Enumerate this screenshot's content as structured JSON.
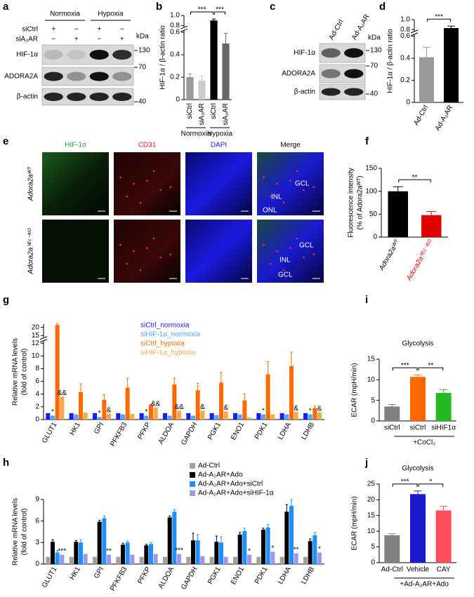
{
  "chart_data": [
    {
      "type": "bar",
      "label": "b",
      "ylabel": "HIF-1α / β-actin ratio",
      "categories": [
        "siCtrl",
        "siA₂AR",
        "siCtrl",
        "siA₂AR"
      ],
      "values": [
        0.2,
        0.17,
        0.9,
        0.5
      ],
      "errors": [
        0.03,
        0.04,
        0.03,
        0.09
      ],
      "colors": [
        "#999999",
        "#cccccc",
        "#000000",
        "#666666"
      ],
      "ylim": [
        0,
        1.0
      ],
      "yticks": [
        0,
        0.2,
        0.4,
        0.6,
        0.8,
        {
          "value": 1.0,
          "label": "1.0"
        }
      ],
      "groups": [
        {
          "label": "Normoxia",
          "categories": [
            0,
            1
          ]
        },
        {
          "label": "Hypoxia",
          "categories": [
            2,
            3
          ]
        }
      ],
      "significance": [
        {
          "from": 0,
          "to": 2,
          "text": "***"
        },
        {
          "from": 2,
          "to": 3,
          "text": "***"
        }
      ]
    },
    {
      "type": "bar",
      "label": "d",
      "ylabel": "HIF-1α / β-actin ratio",
      "categories": [
        "Ad-Ctrl",
        "Ad-A₂AR"
      ],
      "values": [
        0.41,
        0.83
      ],
      "errors": [
        0.09,
        0.04
      ],
      "colors": [
        "#999999",
        "#000000"
      ],
      "ylim": [
        0,
        1.0
      ],
      "yticks": [
        0,
        0.2,
        0.4,
        0.6,
        0.8,
        {
          "value": 1.0,
          "label": "1.0"
        }
      ],
      "significance": [
        {
          "from": 0,
          "to": 1,
          "text": "***"
        }
      ]
    },
    {
      "type": "bar",
      "label": "f",
      "ylabel": [
        "Fluorescence intensity",
        "(% of Adora2aᵂᵀ)"
      ],
      "categories": [
        "Adora2aᵂᵀ",
        "Adora2aⱽᴱᶜ⁻ᴷᴼ"
      ],
      "label_colors": [
        "#000000",
        "#e00000"
      ],
      "values": [
        100,
        48
      ],
      "errors": [
        10,
        8
      ],
      "colors": [
        "#000000",
        "#e00000"
      ],
      "ylim": [
        0,
        150
      ],
      "yticks": [
        0,
        50,
        100,
        150
      ],
      "significance": [
        {
          "from": 0,
          "to": 1,
          "text": "**"
        }
      ]
    },
    {
      "type": "bar",
      "label": "g",
      "ylabel": [
        "Relative mRNA levels",
        "(fold of control)"
      ],
      "categories": [
        "GLUT1",
        "HK1",
        "GPI",
        "PFKFB3",
        "PFKP",
        "ALDOA",
        "GAPDH",
        "PGK1",
        "ENO1",
        "PDK1",
        "LDHA",
        "LDHB"
      ],
      "series": [
        {
          "name": "siCtrl_normoxia",
          "color": "#1a1aff",
          "values": [
            1,
            1,
            1,
            1,
            1,
            1,
            1,
            1,
            1,
            1,
            1,
            1
          ]
        },
        {
          "name": "siHIF-1α_normoxia",
          "color": "#4da6ff",
          "values": [
            0.6,
            0.8,
            0.4,
            0.8,
            0.6,
            0.6,
            0.6,
            0.7,
            0.8,
            0.8,
            0.8,
            0.8
          ]
        },
        {
          "name": "siCtrl_hypoxia",
          "color": "#ff6a00",
          "values": [
            21.5,
            4.3,
            3.1,
            5.0,
            2.3,
            5.5,
            4.6,
            5.8,
            3.0,
            7.1,
            8.4,
            1.8
          ],
          "errors": [
            0.8,
            1.3,
            0.8,
            1.5,
            0.1,
            1.0,
            1.1,
            1.6,
            1.0,
            2.0,
            2.2,
            0.3
          ]
        },
        {
          "name": "siHIF-1α_hypoxia",
          "color": "#ffa64d",
          "values": [
            3.6,
            1.1,
            0.9,
            0.9,
            1.9,
            1.4,
            1.4,
            1.3,
            0.3,
            0.8,
            1.2,
            1.1
          ]
        }
      ],
      "ylim": [
        0,
        22
      ],
      "yticks": [
        0,
        2,
        4,
        6,
        8,
        10,
        12,
        15,
        20
      ],
      "annotations": [
        {
          "category": 0,
          "series": 1,
          "text": "*"
        },
        {
          "category": 0,
          "series": 3,
          "text": "&&"
        },
        {
          "category": 2,
          "series": 1,
          "text": "*"
        },
        {
          "category": 2,
          "series": 3,
          "text": "&"
        },
        {
          "category": 4,
          "series": 1,
          "text": "*"
        },
        {
          "category": 4,
          "series": 3,
          "text": "&&"
        },
        {
          "category": 5,
          "series": 3,
          "text": "&&"
        },
        {
          "category": 6,
          "series": 3,
          "text": "&"
        },
        {
          "category": 7,
          "series": 3,
          "text": "&"
        },
        {
          "category": 9,
          "series": 1,
          "text": "*"
        },
        {
          "category": 10,
          "series": 3,
          "text": "&"
        },
        {
          "category": 11,
          "series": 1,
          "text": "*"
        },
        {
          "category": 11,
          "series": 3,
          "text": "&"
        }
      ]
    },
    {
      "type": "bar",
      "label": "i",
      "title": "Glycolysis",
      "ylabel": "ECAR (mpH/min)",
      "categories": [
        "siCtrl",
        "siCtrl",
        "siHIF1α"
      ],
      "values": [
        3.5,
        10.7,
        6.8
      ],
      "errors": [
        0.5,
        0.5,
        0.8
      ],
      "colors": [
        "#808080",
        "#ff6a00",
        "#22bb22"
      ],
      "ylim": [
        0,
        15
      ],
      "yticks": [
        0,
        5,
        10,
        15
      ],
      "groups": [
        {
          "label": "+CoCl₂",
          "categories": [
            1,
            2
          ]
        }
      ],
      "significance": [
        {
          "from": 0,
          "to": 1,
          "text": "***"
        },
        {
          "from": 1,
          "to": 2,
          "text": "**"
        }
      ]
    },
    {
      "type": "bar",
      "label": "h",
      "ylabel": [
        "Relative mRNA levels",
        "(fold of control)"
      ],
      "categories": [
        "GLUT1",
        "HK1",
        "GPI",
        "PFKFB3",
        "PFKP",
        "ALDOA",
        "GAPDH",
        "PGK1",
        "ENO1",
        "PDK1",
        "LDHA",
        "LDHB"
      ],
      "series": [
        {
          "name": "Ad-Ctrl",
          "color": "#a0a0a0",
          "values": [
            1,
            1,
            1,
            1,
            1,
            1,
            1,
            1,
            1,
            1,
            1,
            1
          ]
        },
        {
          "name": "Ad-A₂AR+Ado",
          "color": "#000000",
          "values": [
            3.1,
            3.1,
            5.9,
            2.7,
            2.6,
            6.5,
            3.3,
            3.1,
            4.1,
            4.8,
            7.3,
            3.2
          ],
          "errors": [
            0.3,
            0.2,
            0.2,
            0.2,
            0.15,
            0.2,
            1.0,
            0.8,
            0.3,
            0.2,
            1.0,
            0.3
          ]
        },
        {
          "name": "Ad-A₂AR+Ado+siCtrl",
          "color": "#1e90ff",
          "values": [
            1.6,
            3.0,
            6.4,
            3.0,
            2.8,
            7.3,
            3.3,
            3.0,
            4.6,
            5.1,
            8.1,
            4.0
          ],
          "errors": [
            0.3,
            0.4,
            0.3,
            0.2,
            0.2,
            0.3,
            0.8,
            0.8,
            0.4,
            0.4,
            0.9,
            0.4
          ]
        },
        {
          "name": "Ad-A₂AR+Ado+siHIF-1α",
          "color": "#9999ee",
          "values": [
            1.3,
            1.4,
            1.3,
            1.3,
            1.4,
            1.4,
            1.1,
            1.0,
            1.3,
            1.7,
            1.5,
            1.6
          ]
        }
      ],
      "ylim": [
        0,
        9
      ],
      "yticks": [
        0,
        3,
        6,
        9
      ],
      "annotations": [
        {
          "category": 0,
          "series": 3,
          "text": "***"
        },
        {
          "category": 2,
          "series": 3,
          "text": "**"
        },
        {
          "category": 5,
          "series": 3,
          "text": "***"
        },
        {
          "category": 8,
          "series": 3,
          "text": "*"
        },
        {
          "category": 9,
          "series": 3,
          "text": "*"
        },
        {
          "category": 10,
          "series": 3,
          "text": "**"
        },
        {
          "category": 11,
          "series": 3,
          "text": "*"
        }
      ]
    },
    {
      "type": "bar",
      "label": "j",
      "title": "Glycolysis",
      "ylabel": "ECAR (mpH/min)",
      "categories": [
        "Ad-Ctrl",
        "Vehicle",
        "CAY"
      ],
      "values": [
        8.7,
        21.8,
        16.6
      ],
      "errors": [
        0.5,
        1.0,
        1.3
      ],
      "colors": [
        "#808080",
        "#1a1acc",
        "#ff4d5a"
      ],
      "ylim": [
        0,
        25
      ],
      "yticks": [
        0,
        5,
        10,
        15,
        20,
        25
      ],
      "groups": [
        {
          "label": "+Ad-A₂AR+Ado",
          "categories": [
            1,
            2
          ]
        }
      ],
      "significance": [
        {
          "from": 0,
          "to": 1,
          "text": "***"
        },
        {
          "from": 1,
          "to": 2,
          "text": "*"
        }
      ]
    }
  ],
  "blots": [
    {
      "label": "a",
      "columns": [
        "Normoxia",
        "Hypoxia"
      ],
      "rows": [
        "siCtrl",
        "siA₂AR"
      ],
      "signs": [
        [
          "+",
          "−",
          "+",
          "−"
        ],
        [
          "−",
          "+",
          "−",
          "+"
        ]
      ],
      "bands": [
        "HIF-1α",
        "ADORA2A",
        "β-actin"
      ],
      "unit": "kDa",
      "markers": [
        "130",
        "70",
        "40"
      ]
    },
    {
      "label": "c",
      "lanes": [
        "Ad-Ctrl",
        "Ad-A₂AR"
      ],
      "bands": [
        "HIF-1α",
        "ADORA2A",
        "β-actin"
      ],
      "unit": "kDa",
      "markers": [
        "130",
        "70",
        "40"
      ]
    }
  ],
  "images": {
    "label": "e",
    "columns": [
      "HIF-1α",
      "CD31",
      "DAPI",
      "Merge"
    ],
    "rows": [
      "Adora2aᵂᵀ",
      "Adora2aⱽᴱᶜ⁻ᴷᴼ"
    ],
    "layers": [
      [
        "GCL",
        "INL",
        "ONL"
      ],
      [
        "GCL",
        "INL",
        "GCL"
      ]
    ]
  }
}
